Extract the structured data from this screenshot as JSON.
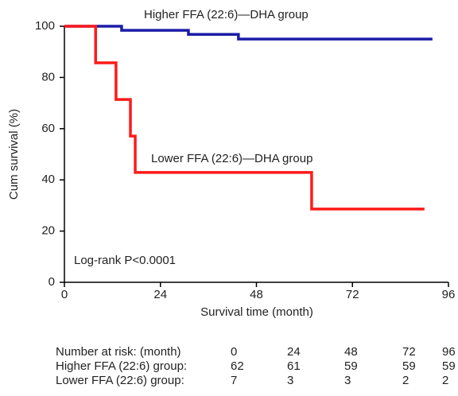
{
  "chart_data": {
    "type": "step",
    "xlabel": "Survival time (month)",
    "ylabel": "Cum survival (%)",
    "xlim": [
      0,
      96
    ],
    "xticks": [
      0,
      24,
      48,
      72,
      96
    ],
    "ylim": [
      0,
      100
    ],
    "yticks": [
      0,
      20,
      40,
      60,
      80,
      100
    ],
    "series": [
      {
        "name": "Higher FFA (22:6)—DHA group",
        "color": "#1c1ca8",
        "x": [
          0,
          14.3,
          31,
          43.5,
          92
        ],
        "values": [
          100,
          98.4,
          96.8,
          95,
          95
        ]
      },
      {
        "name": "Lower FFA (22:6)—DHA group",
        "color": "#ff1a1a",
        "x": [
          0,
          7.8,
          12.9,
          16.5,
          17.7,
          61.8,
          90
        ],
        "values": [
          100,
          85.7,
          71.4,
          57.1,
          42.9,
          28.6,
          28.6
        ]
      }
    ],
    "annotations": [
      "Log-rank P<0.0001"
    ]
  },
  "risk_table": {
    "header": "Number at risk: (month)",
    "months": [
      "0",
      "24",
      "48",
      "72",
      "96"
    ],
    "rows": [
      {
        "label": "Higher FFA (22:6) group:",
        "values": [
          "62",
          "61",
          "59",
          "59",
          "59"
        ]
      },
      {
        "label": "Lower FFA (22:6) group:",
        "values": [
          "7",
          "3",
          "3",
          "2",
          "2"
        ]
      }
    ]
  }
}
